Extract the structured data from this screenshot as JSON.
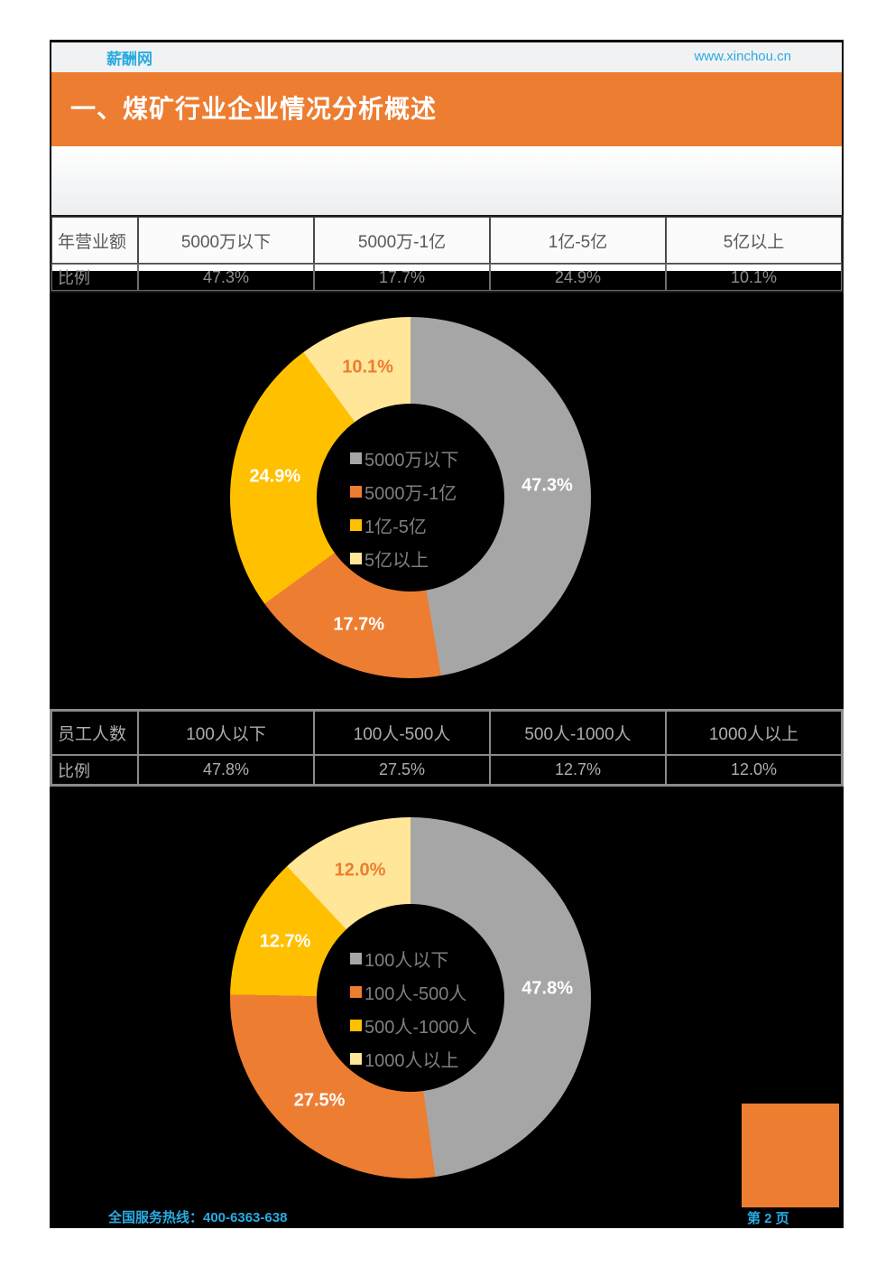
{
  "page": {
    "header": {
      "logo": "薪酬网",
      "url": "www.xinchou.cn"
    },
    "title": "一、煤矿行业企业情况分析概述",
    "footer": {
      "hotline": "全国服务热线：400-6363-638",
      "page_num": "第 2 页"
    }
  },
  "table1": {
    "header_row": [
      "年营业额",
      "5000万以下",
      "5000万-1亿",
      "1亿-5亿",
      "5亿以上"
    ],
    "data_row": [
      "比例",
      "47.3%",
      "17.7%",
      "24.9%",
      "10.1%"
    ]
  },
  "table2": {
    "header_row": [
      "员工人数",
      "100人以下",
      "100人-500人",
      "500人-1000人",
      "1000人以上"
    ],
    "data_row": [
      "比例",
      "47.8%",
      "27.5%",
      "12.7%",
      "12.0%"
    ]
  },
  "chart_data": [
    {
      "type": "pie",
      "subtype": "donut",
      "title": "",
      "categories": [
        "5000万以下",
        "5000万-1亿",
        "1亿-5亿",
        "5亿以上"
      ],
      "values": [
        47.3,
        17.7,
        24.9,
        10.1
      ],
      "labels": [
        "47.3%",
        "17.7%",
        "24.9%",
        "10.1%"
      ],
      "colors": [
        "#A6A6A6",
        "#ED7D31",
        "#FFC000",
        "#FFE699"
      ],
      "label_colors": [
        "#FFFFFF",
        "#FFFFFF",
        "#FFFFFF",
        "#ED7D31"
      ],
      "legend_position": "center",
      "start_angle_deg": 0,
      "direction": "clockwise"
    },
    {
      "type": "pie",
      "subtype": "donut",
      "title": "",
      "categories": [
        "100人以下",
        "100人-500人",
        "500人-1000人",
        "1000人以上"
      ],
      "values": [
        47.8,
        27.5,
        12.7,
        12.0
      ],
      "labels": [
        "47.8%",
        "27.5%",
        "12.7%",
        "12.0%"
      ],
      "colors": [
        "#A6A6A6",
        "#ED7D31",
        "#FFC000",
        "#FFE699"
      ],
      "label_colors": [
        "#FFFFFF",
        "#FFFFFF",
        "#FFFFFF",
        "#ED7D31"
      ],
      "legend_position": "center",
      "start_angle_deg": 0,
      "direction": "clockwise"
    }
  ],
  "colors": {
    "accent_orange": "#ED7D31",
    "cyan": "#29ABE2",
    "chart_gray": "#A6A6A6",
    "chart_gold": "#FFC000",
    "chart_pale_yellow": "#FFE699",
    "page_black": "#000000"
  }
}
